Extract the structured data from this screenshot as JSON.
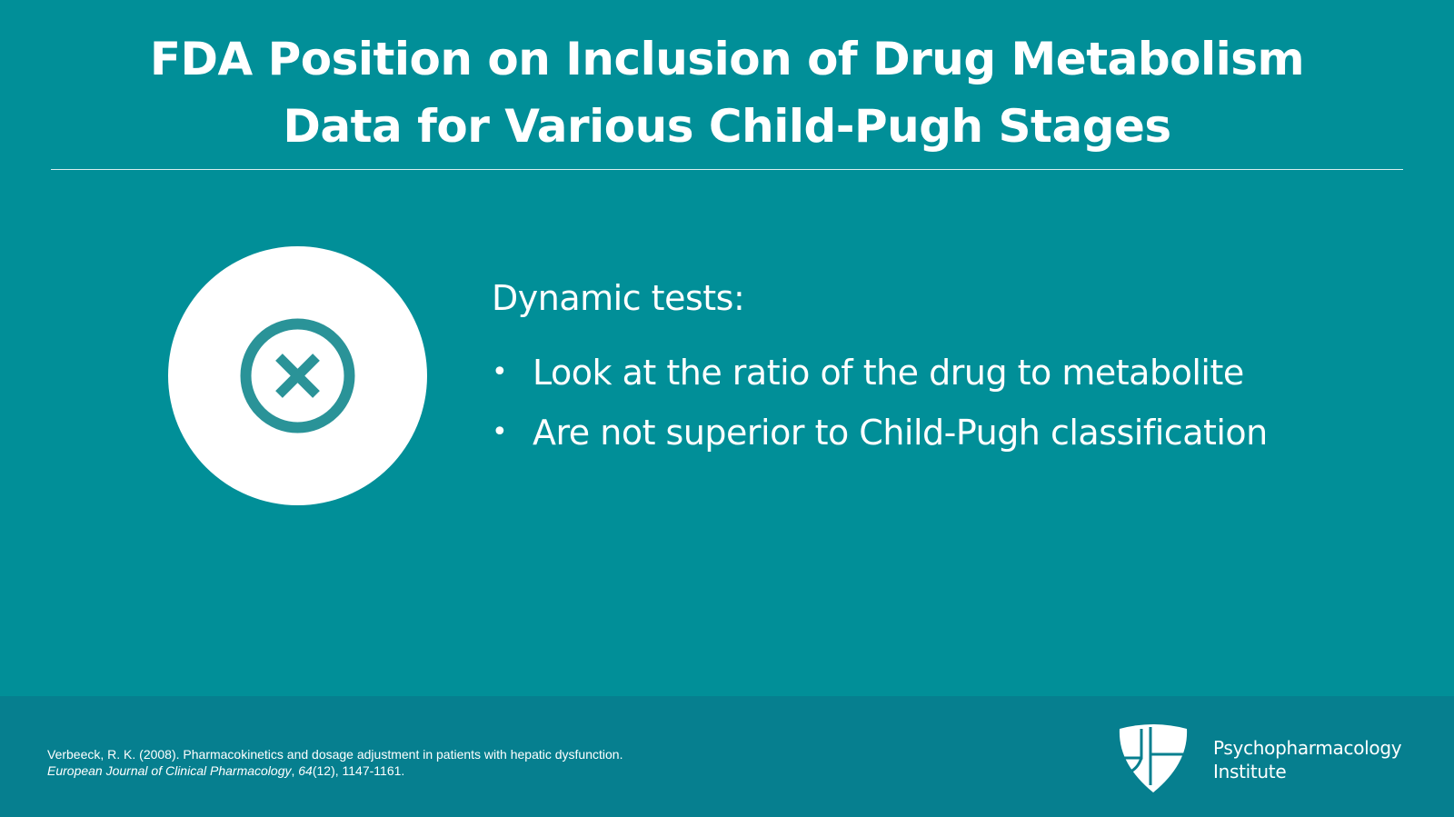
{
  "title": {
    "line1": "FDA Position on Inclusion of Drug Metabolism",
    "line2": "Data for Various Child-Pugh Stages"
  },
  "icon": {
    "name": "close-circle-icon",
    "color": "#2a9398"
  },
  "content": {
    "heading": "Dynamic tests:",
    "bullets": [
      "Look at the ratio of the drug to metabolite",
      "Are not superior to Child-Pugh classification"
    ]
  },
  "footer": {
    "citation_line1": "Verbeeck, R. K. (2008). Pharmacokinetics and dosage adjustment in patients with hepatic dysfunction.",
    "citation_journal": "European Journal of Clinical Pharmacology",
    "citation_sep": ", ",
    "citation_volume": "64",
    "citation_rest": "(12), 1147-1161.",
    "logo_icon": "shield-icon",
    "brand_line1": "Psychopharmacology",
    "brand_line2": "Institute"
  },
  "colors": {
    "background": "#018f98",
    "footer": "#067f8f",
    "text": "#ffffff"
  }
}
